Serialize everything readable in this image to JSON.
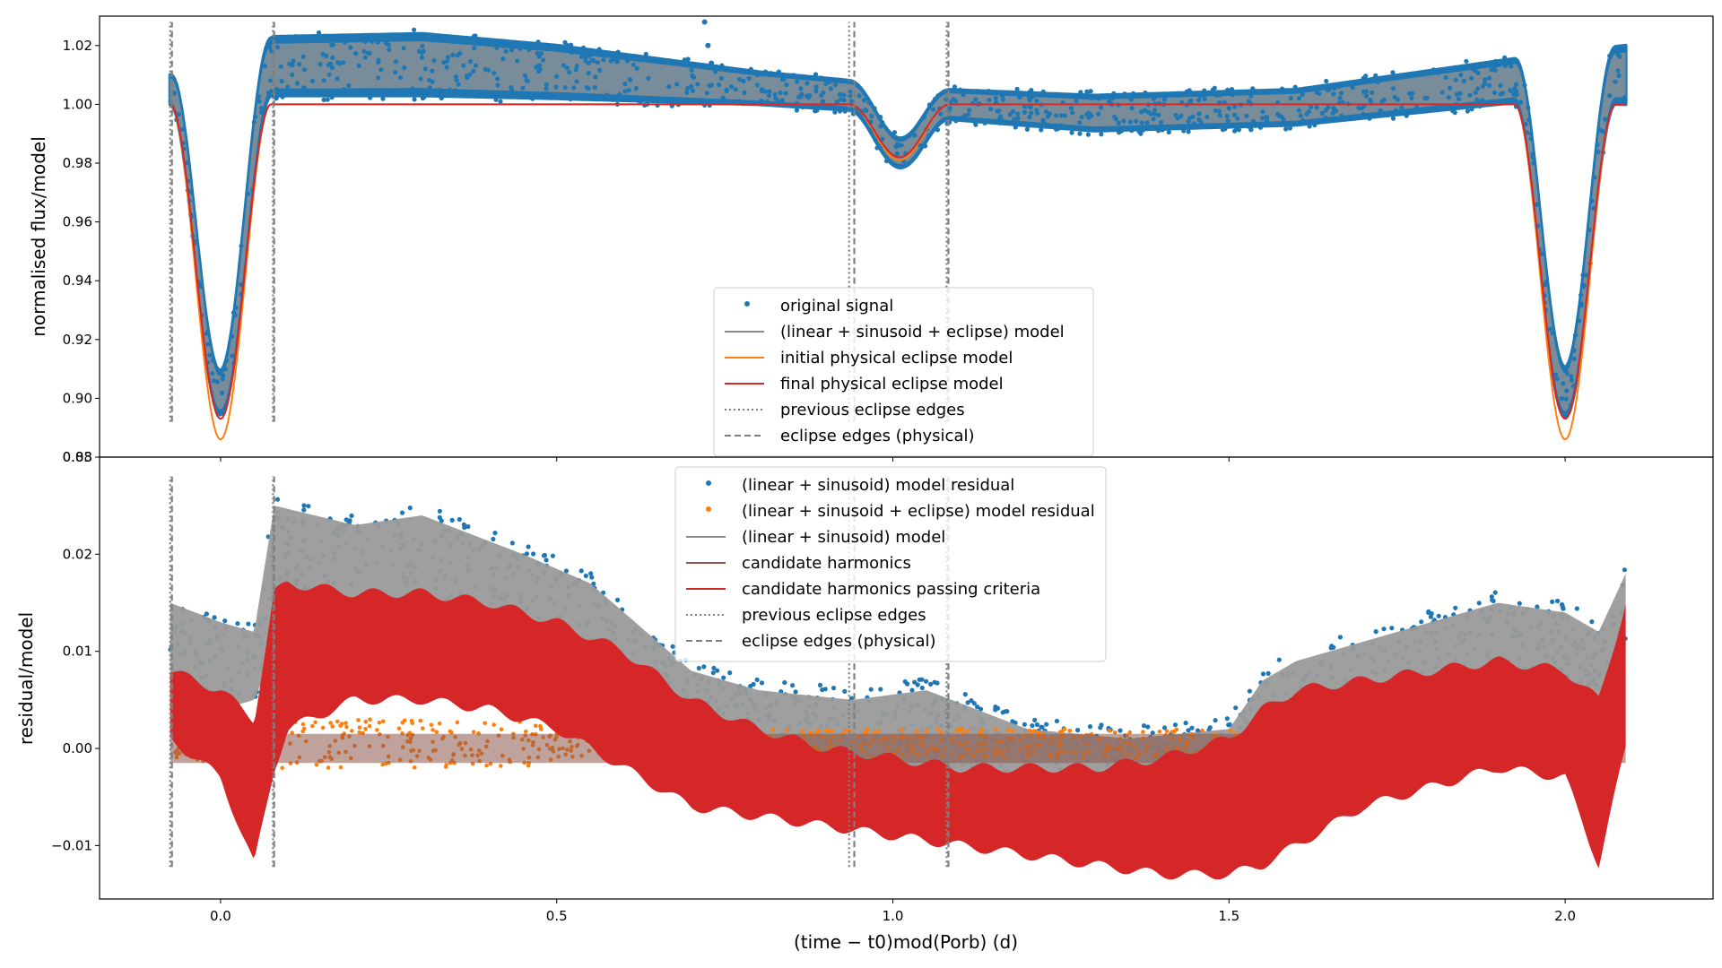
{
  "chart_data": [
    {
      "type": "scatter",
      "panel": "top",
      "ylabel": "normalised flux/model",
      "xlim": [
        -0.18,
        2.22
      ],
      "ylim": [
        0.88,
        1.03
      ],
      "xticks": [
        "0.0",
        "0.5",
        "1.0",
        "1.5",
        "2.0"
      ],
      "yticks": [
        "0.88",
        "0.90",
        "0.92",
        "0.94",
        "0.96",
        "0.98",
        "1.00",
        "1.02"
      ],
      "ytick_values": [
        0.88,
        0.9,
        0.92,
        0.94,
        0.96,
        0.98,
        1.0,
        1.02
      ],
      "legend_position": "lower-center",
      "legend": [
        {
          "label": "original signal",
          "kind": "point",
          "color": "#1f77b4"
        },
        {
          "label": "(linear + sinusoid + eclipse) model",
          "kind": "line",
          "color": "#8c8c8c"
        },
        {
          "label": "initial physical eclipse model",
          "kind": "line",
          "color": "#ff7f0e"
        },
        {
          "label": "final physical eclipse model",
          "kind": "line",
          "color": "#d62728"
        },
        {
          "label": "previous eclipse edges",
          "kind": "dotted",
          "color": "#7f7f7f"
        },
        {
          "label": "eclipse edges (physical)",
          "kind": "dashed",
          "color": "#7f7f7f"
        }
      ],
      "eclipse": {
        "primary_centres": [
          0.0,
          2.0
        ],
        "primary_halfwidth": 0.075,
        "final_min": 0.893,
        "initial_min": 0.886,
        "secondary_centre": 1.01,
        "secondary_halfwidth": 0.075,
        "secondary_final_min": 0.982,
        "secondary_initial_min": 0.981
      },
      "signal_trend": {
        "x": [
          -0.075,
          0.08,
          0.3,
          0.5,
          0.8,
          0.94,
          1.08,
          1.3,
          1.6,
          1.94,
          2.09
        ],
        "upper": [
          1.01,
          1.023,
          1.024,
          1.02,
          1.011,
          1.008,
          1.005,
          1.003,
          1.005,
          1.016,
          1.02
        ],
        "lower": [
          1.0,
          1.003,
          1.003,
          1.002,
          1.0,
          0.998,
          0.995,
          0.991,
          0.993,
          1.001,
          1.0
        ]
      },
      "outliers": [
        {
          "x": 0.72,
          "y": 1.028
        },
        {
          "x": 0.725,
          "y": 1.02
        },
        {
          "x": 0.73,
          "y": 1.014
        }
      ],
      "previous_eclipse_edges": [
        -0.075,
        0.078,
        0.935,
        1.08
      ],
      "eclipse_edges_physical": [
        -0.075,
        0.077,
        0.94,
        1.08
      ],
      "edge_line_range": [
        0.892,
        1.028
      ]
    },
    {
      "type": "scatter",
      "panel": "bottom",
      "xlabel": "(time − t0)mod(Porb) (d)",
      "ylabel": "residual/model",
      "xlim": [
        -0.18,
        2.22
      ],
      "ylim": [
        -0.0155,
        0.03
      ],
      "xticks": [
        "0.0",
        "0.5",
        "1.0",
        "1.5",
        "2.0"
      ],
      "xtick_values": [
        0.0,
        0.5,
        1.0,
        1.5,
        2.0
      ],
      "yticks": [
        "−0.01",
        "0.00",
        "0.01",
        "0.02",
        "0.03"
      ],
      "ytick_values": [
        -0.01,
        0.0,
        0.01,
        0.02,
        0.03
      ],
      "legend_position": "upper-center",
      "legend": [
        {
          "label": "(linear + sinusoid) model residual",
          "kind": "point",
          "color": "#1f77b4"
        },
        {
          "label": "(linear + sinusoid + eclipse) model residual",
          "kind": "point",
          "color": "#ff7f0e"
        },
        {
          "label": "(linear + sinusoid) model",
          "kind": "line",
          "color": "#8c8c8c"
        },
        {
          "label": "candidate harmonics",
          "kind": "line",
          "color": "#8c564b"
        },
        {
          "label": "candidate harmonics passing criteria",
          "kind": "line",
          "color": "#d62728"
        },
        {
          "label": "previous eclipse edges",
          "kind": "dotted",
          "color": "#7f7f7f"
        },
        {
          "label": "eclipse edges (physical)",
          "kind": "dashed",
          "color": "#7f7f7f"
        }
      ],
      "residual_band": {
        "x": [
          -0.075,
          0.0,
          0.05,
          0.08,
          0.2,
          0.3,
          0.45,
          0.55,
          0.7,
          0.8,
          0.94,
          1.05,
          1.2,
          1.35,
          1.5,
          1.55,
          1.6,
          1.75,
          1.9,
          2.0,
          2.05,
          2.09
        ],
        "upper": [
          0.015,
          0.013,
          0.012,
          0.025,
          0.023,
          0.024,
          0.02,
          0.017,
          0.008,
          0.006,
          0.005,
          0.006,
          0.002,
          0.001,
          0.002,
          0.007,
          0.009,
          0.012,
          0.015,
          0.014,
          0.012,
          0.018
        ],
        "lower": [
          0.005,
          0.004,
          0.005,
          0.01,
          0.009,
          0.01,
          0.009,
          0.006,
          0.002,
          0.0,
          -0.002,
          -0.003,
          -0.004,
          -0.004,
          -0.003,
          0.0,
          -0.003,
          0.0,
          0.005,
          0.006,
          0.005,
          0.01
        ]
      },
      "eclipse_residual": {
        "x": [
          -0.075,
          0.08,
          0.45,
          0.5,
          0.8,
          1.35,
          1.6,
          1.95,
          2.09
        ],
        "upper": [
          0.001,
          0.003,
          0.003,
          0.002,
          0.002,
          0.002,
          0.002,
          0.001,
          0.002
        ],
        "lower": [
          -0.001,
          -0.002,
          -0.002,
          -0.001,
          -0.001,
          -0.001,
          -0.001,
          -0.001,
          -0.001
        ]
      },
      "harmonics_passing": {
        "x": [
          -0.075,
          0.0,
          0.05,
          0.08,
          0.1,
          0.2,
          0.3,
          0.4,
          0.5,
          0.6,
          0.7,
          0.8,
          0.9,
          1.0,
          1.1,
          1.2,
          1.3,
          1.4,
          1.5,
          1.55,
          1.6,
          1.7,
          1.8,
          1.9,
          2.0,
          2.05,
          2.09
        ],
        "upper": [
          0.008,
          0.006,
          0.003,
          0.016,
          0.017,
          0.016,
          0.016,
          0.015,
          0.013,
          0.01,
          0.005,
          0.002,
          0.0,
          -0.001,
          -0.002,
          -0.002,
          -0.002,
          -0.001,
          0.001,
          0.004,
          0.006,
          0.007,
          0.008,
          0.009,
          0.008,
          0.005,
          0.015
        ],
        "lower": [
          0.001,
          -0.003,
          -0.012,
          -0.002,
          0.002,
          0.005,
          0.005,
          0.004,
          0.002,
          -0.002,
          -0.006,
          -0.007,
          -0.008,
          -0.009,
          -0.01,
          -0.011,
          -0.012,
          -0.013,
          -0.013,
          -0.012,
          -0.01,
          -0.006,
          -0.004,
          -0.002,
          -0.003,
          -0.012,
          0.0
        ]
      },
      "previous_eclipse_edges": [
        -0.075,
        0.078,
        0.935,
        1.08
      ],
      "eclipse_edges_physical": [
        -0.075,
        0.077,
        0.94,
        1.08
      ],
      "edge_line_range": [
        -0.0122,
        0.028
      ]
    }
  ]
}
